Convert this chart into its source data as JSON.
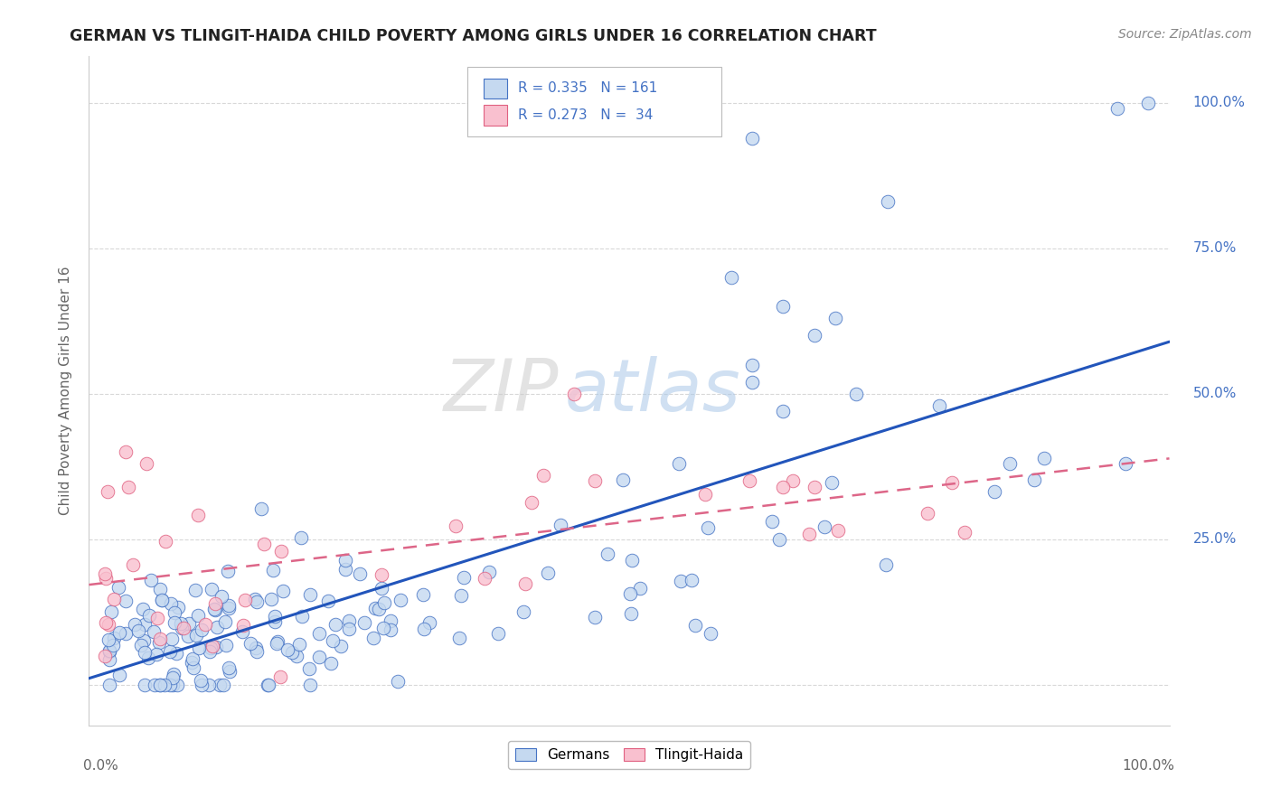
{
  "title": "GERMAN VS TLINGIT-HAIDA CHILD POVERTY AMONG GIRLS UNDER 16 CORRELATION CHART",
  "source": "Source: ZipAtlas.com",
  "ylabel": "Child Poverty Among Girls Under 16",
  "watermark_part1": "ZIP",
  "watermark_part2": "atlas",
  "legend_german_text": "R = 0.335   N = 161",
  "legend_tlingit_text": "R = 0.273   N =  34",
  "german_fill": "#c5d9f0",
  "tlingit_fill": "#f9c0cf",
  "german_edge": "#4472c4",
  "tlingit_edge": "#e06080",
  "german_line_color": "#2255bb",
  "tlingit_line_color": "#dd6688",
  "right_label_color": "#4472c4",
  "background_color": "#ffffff",
  "grid_color": "#d8d8d8",
  "title_color": "#222222",
  "axis_label_color": "#666666",
  "source_color": "#888888"
}
